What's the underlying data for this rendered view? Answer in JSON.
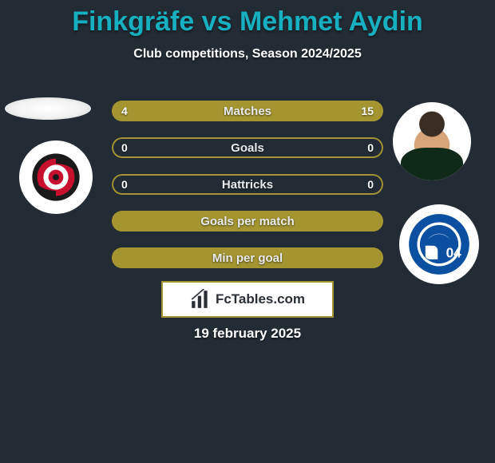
{
  "title_text": "Finkgräfe vs Mehmet Aydin",
  "title_color": "#16b0c0",
  "subtitle": "Club competitions, Season 2024/2025",
  "date": "19 february 2025",
  "logo_text": "FcTables.com",
  "bar_accent": "#a49531",
  "bar_bg": "#232c35",
  "bars": [
    {
      "label": "Matches",
      "left": "4",
      "right": "15",
      "left_pct": 21,
      "right_pct": 79,
      "show_values": true
    },
    {
      "label": "Goals",
      "left": "0",
      "right": "0",
      "left_pct": 0,
      "right_pct": 0,
      "show_values": true
    },
    {
      "label": "Hattricks",
      "left": "0",
      "right": "0",
      "left_pct": 0,
      "right_pct": 0,
      "show_values": true
    },
    {
      "label": "Goals per match",
      "left": "",
      "right": "",
      "left_pct": 100,
      "right_pct": 0,
      "show_values": false
    },
    {
      "label": "Min per goal",
      "left": "",
      "right": "",
      "left_pct": 100,
      "right_pct": 0,
      "show_values": false
    }
  ],
  "schalke_blue": "#0a4fa0",
  "hurricane_red": "#c8102e"
}
